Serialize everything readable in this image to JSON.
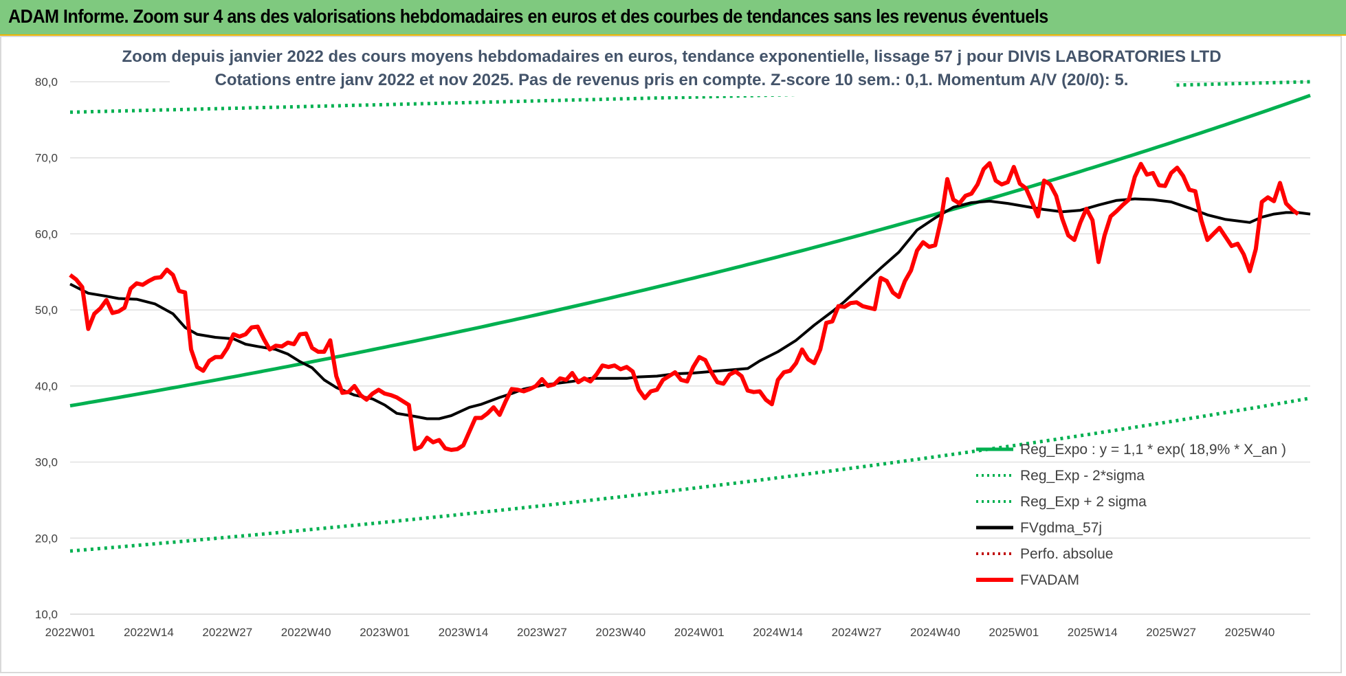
{
  "banner": {
    "title": "ADAM Informe. Zoom sur 4 ans des valorisations hebdomadaires en euros et des courbes de tendances sans les revenus éventuels"
  },
  "colors": {
    "banner_bg": "#7fc97f",
    "trend": "#00b050",
    "bands": "#00b050",
    "moving_average": "#000000",
    "price": "#ff0000",
    "perf": "#c00000"
  },
  "chart_data": {
    "type": "line",
    "title": "Zoom depuis janvier 2022 des cours moyens hebdomadaires en euros, tendance exponentielle, lissage 57 j pour DIVIS LABORATORIES LTD",
    "subtitle": "Cotations entre janv 2022 et nov 2025. Pas de revenus pris en compte. Z-score 10 sem.: 0,1. Momentum A/V (20/0): 5.",
    "xlabel": "",
    "ylabel": "",
    "x_tick_labels": [
      "2022W01",
      "2022W14",
      "2022W27",
      "2022W40",
      "2023W01",
      "2023W14",
      "2023W27",
      "2023W40",
      "2024W01",
      "2024W14",
      "2024W27",
      "2024W40",
      "2025W01",
      "2025W14",
      "2025W27",
      "2025W40"
    ],
    "y_tick_labels": [
      "10,0",
      "20,0",
      "30,0",
      "40,0",
      "50,0",
      "60,0",
      "70,0",
      "80,0"
    ],
    "ylim": [
      10,
      80
    ],
    "grid": "horizontal",
    "legend_position": "bottom-right",
    "series": [
      {
        "name": "Reg_Expo : y = 1,1 * exp( 18,9% *  X_an )",
        "style": "solid",
        "color": "#00b050",
        "start_value": 37.4,
        "end_value": 78.2,
        "growth_rate": 0.189
      },
      {
        "name": "Reg_Exp - 2*sigma",
        "style": "dotted",
        "color": "#00b050",
        "start_value": 18.3,
        "end_value": 38.4
      },
      {
        "name": "Reg_Exp + 2 sigma",
        "style": "dotted",
        "color": "#00b050",
        "start_value": 76.0,
        "end_value": 80.0,
        "clipped_at": 80.0
      },
      {
        "name": "FVgdma_57j",
        "style": "solid",
        "color": "#000000",
        "points": [
          [
            0,
            53.4
          ],
          [
            3,
            52.2
          ],
          [
            6,
            51.8
          ],
          [
            8,
            51.5
          ],
          [
            11,
            51.4
          ],
          [
            14,
            50.8
          ],
          [
            17,
            49.5
          ],
          [
            19,
            47.7
          ],
          [
            21,
            46.8
          ],
          [
            24,
            46.4
          ],
          [
            27,
            46.2
          ],
          [
            29,
            45.5
          ],
          [
            31,
            45.2
          ],
          [
            34,
            44.8
          ],
          [
            36,
            44.2
          ],
          [
            38,
            43.2
          ],
          [
            40,
            42.4
          ],
          [
            42,
            40.8
          ],
          [
            44,
            39.8
          ],
          [
            47,
            38.8
          ],
          [
            50,
            38.3
          ],
          [
            52,
            37.5
          ],
          [
            54,
            36.4
          ],
          [
            57,
            36.0
          ],
          [
            59,
            35.7
          ],
          [
            61,
            35.7
          ],
          [
            63,
            36.1
          ],
          [
            66,
            37.2
          ],
          [
            68,
            37.6
          ],
          [
            71,
            38.5
          ],
          [
            73,
            39.0
          ],
          [
            75,
            39.6
          ],
          [
            78,
            40.1
          ],
          [
            80,
            40.3
          ],
          [
            83,
            40.6
          ],
          [
            86,
            41.0
          ],
          [
            89,
            41.0
          ],
          [
            92,
            41.0
          ],
          [
            94,
            41.2
          ],
          [
            97,
            41.3
          ],
          [
            100,
            41.6
          ],
          [
            103,
            41.7
          ],
          [
            106,
            41.9
          ],
          [
            109,
            42.1
          ],
          [
            112,
            42.3
          ],
          [
            114,
            43.3
          ],
          [
            117,
            44.5
          ],
          [
            120,
            46.0
          ],
          [
            123,
            48.0
          ],
          [
            126,
            49.8
          ],
          [
            128,
            51.1
          ],
          [
            131,
            53.3
          ],
          [
            134,
            55.5
          ],
          [
            137,
            57.6
          ],
          [
            140,
            60.5
          ],
          [
            143,
            62.1
          ],
          [
            146,
            63.5
          ],
          [
            149,
            64.1
          ],
          [
            152,
            64.3
          ],
          [
            155,
            64.0
          ],
          [
            158,
            63.6
          ],
          [
            161,
            63.2
          ],
          [
            164,
            62.9
          ],
          [
            167,
            63.1
          ],
          [
            170,
            63.8
          ],
          [
            173,
            64.4
          ],
          [
            176,
            64.6
          ],
          [
            179,
            64.5
          ],
          [
            182,
            64.2
          ],
          [
            185,
            63.4
          ],
          [
            188,
            62.5
          ],
          [
            191,
            61.9
          ],
          [
            194,
            61.6
          ],
          [
            195,
            61.5
          ],
          [
            197,
            62.2
          ],
          [
            199,
            62.6
          ],
          [
            201,
            62.8
          ],
          [
            203,
            62.8
          ],
          [
            205,
            62.6
          ]
        ]
      },
      {
        "name": "Perfo. absolue",
        "style": "dotted",
        "color": "#c00000",
        "points": []
      },
      {
        "name": "FVADAM",
        "style": "solid",
        "color": "#ff0000",
        "points": [
          [
            0,
            54.6
          ],
          [
            1,
            54.0
          ],
          [
            2,
            53.0
          ],
          [
            3,
            47.5
          ],
          [
            4,
            49.5
          ],
          [
            5,
            50.2
          ],
          [
            6,
            51.3
          ],
          [
            7,
            49.6
          ],
          [
            8,
            49.8
          ],
          [
            9,
            50.3
          ],
          [
            10,
            52.8
          ],
          [
            11,
            53.5
          ],
          [
            12,
            53.3
          ],
          [
            13,
            53.8
          ],
          [
            14,
            54.2
          ],
          [
            15,
            54.3
          ],
          [
            16,
            55.3
          ],
          [
            17,
            54.6
          ],
          [
            18,
            52.5
          ],
          [
            19,
            52.3
          ],
          [
            20,
            44.8
          ],
          [
            21,
            42.5
          ],
          [
            22,
            42.0
          ],
          [
            23,
            43.3
          ],
          [
            24,
            43.8
          ],
          [
            25,
            43.8
          ],
          [
            26,
            45.0
          ],
          [
            27,
            46.8
          ],
          [
            28,
            46.5
          ],
          [
            29,
            46.8
          ],
          [
            30,
            47.7
          ],
          [
            31,
            47.8
          ],
          [
            32,
            46.2
          ],
          [
            33,
            44.8
          ],
          [
            34,
            45.3
          ],
          [
            35,
            45.2
          ],
          [
            36,
            45.7
          ],
          [
            37,
            45.5
          ],
          [
            38,
            46.8
          ],
          [
            39,
            46.9
          ],
          [
            40,
            45.0
          ],
          [
            41,
            44.5
          ],
          [
            42,
            44.5
          ],
          [
            43,
            46.0
          ],
          [
            44,
            41.3
          ],
          [
            45,
            39.1
          ],
          [
            46,
            39.2
          ],
          [
            47,
            40.0
          ],
          [
            48,
            38.8
          ],
          [
            49,
            38.2
          ],
          [
            50,
            39.0
          ],
          [
            51,
            39.5
          ],
          [
            52,
            39.0
          ],
          [
            53,
            38.8
          ],
          [
            54,
            38.5
          ],
          [
            55,
            38.0
          ],
          [
            56,
            37.5
          ],
          [
            57,
            31.7
          ],
          [
            58,
            32.0
          ],
          [
            59,
            33.2
          ],
          [
            60,
            32.6
          ],
          [
            61,
            32.9
          ],
          [
            62,
            31.8
          ],
          [
            63,
            31.6
          ],
          [
            64,
            31.7
          ],
          [
            65,
            32.2
          ],
          [
            66,
            34.0
          ],
          [
            67,
            35.8
          ],
          [
            68,
            35.8
          ],
          [
            69,
            36.4
          ],
          [
            70,
            37.2
          ],
          [
            71,
            36.2
          ],
          [
            72,
            38.0
          ],
          [
            73,
            39.6
          ],
          [
            74,
            39.5
          ],
          [
            75,
            39.3
          ],
          [
            76,
            39.6
          ],
          [
            77,
            40.0
          ],
          [
            78,
            40.9
          ],
          [
            79,
            40.0
          ],
          [
            80,
            40.2
          ],
          [
            81,
            41.0
          ],
          [
            82,
            40.8
          ],
          [
            83,
            41.7
          ],
          [
            84,
            40.5
          ],
          [
            85,
            41.0
          ],
          [
            86,
            40.6
          ],
          [
            87,
            41.5
          ],
          [
            88,
            42.7
          ],
          [
            89,
            42.5
          ],
          [
            90,
            42.7
          ],
          [
            91,
            42.2
          ],
          [
            92,
            42.5
          ],
          [
            93,
            41.9
          ],
          [
            94,
            39.5
          ],
          [
            95,
            38.4
          ],
          [
            96,
            39.3
          ],
          [
            97,
            39.5
          ],
          [
            98,
            40.8
          ],
          [
            99,
            41.3
          ],
          [
            100,
            41.8
          ],
          [
            101,
            40.8
          ],
          [
            102,
            40.6
          ],
          [
            103,
            42.5
          ],
          [
            104,
            43.8
          ],
          [
            105,
            43.4
          ],
          [
            106,
            41.8
          ],
          [
            107,
            40.5
          ],
          [
            108,
            40.3
          ],
          [
            109,
            41.5
          ],
          [
            110,
            41.9
          ],
          [
            111,
            41.3
          ],
          [
            112,
            39.4
          ],
          [
            113,
            39.2
          ],
          [
            114,
            39.3
          ],
          [
            115,
            38.2
          ],
          [
            116,
            37.6
          ],
          [
            117,
            40.8
          ],
          [
            118,
            41.8
          ],
          [
            119,
            42.0
          ],
          [
            120,
            43.0
          ],
          [
            121,
            44.8
          ],
          [
            122,
            43.5
          ],
          [
            123,
            43.0
          ],
          [
            124,
            44.8
          ],
          [
            125,
            48.3
          ],
          [
            126,
            48.5
          ],
          [
            127,
            50.5
          ],
          [
            128,
            50.4
          ],
          [
            129,
            50.9
          ],
          [
            130,
            51.0
          ],
          [
            131,
            50.5
          ],
          [
            132,
            50.3
          ],
          [
            133,
            50.1
          ],
          [
            134,
            54.2
          ],
          [
            135,
            53.8
          ],
          [
            136,
            52.3
          ],
          [
            137,
            51.7
          ],
          [
            138,
            53.8
          ],
          [
            139,
            55.2
          ],
          [
            140,
            57.8
          ],
          [
            141,
            58.9
          ],
          [
            142,
            58.3
          ],
          [
            143,
            58.5
          ],
          [
            144,
            62.0
          ],
          [
            145,
            67.2
          ],
          [
            146,
            64.5
          ],
          [
            147,
            64.0
          ],
          [
            148,
            65.0
          ],
          [
            149,
            65.3
          ],
          [
            150,
            66.5
          ],
          [
            151,
            68.5
          ],
          [
            152,
            69.3
          ],
          [
            153,
            67.0
          ],
          [
            154,
            66.5
          ],
          [
            155,
            66.8
          ],
          [
            156,
            68.8
          ],
          [
            157,
            66.6
          ],
          [
            158,
            66.0
          ],
          [
            159,
            64.2
          ],
          [
            160,
            62.3
          ],
          [
            161,
            67.0
          ],
          [
            162,
            66.5
          ],
          [
            163,
            65.0
          ],
          [
            164,
            62.0
          ],
          [
            165,
            59.8
          ],
          [
            166,
            59.2
          ],
          [
            167,
            61.5
          ],
          [
            168,
            63.3
          ],
          [
            169,
            61.8
          ],
          [
            170,
            56.3
          ],
          [
            171,
            59.8
          ],
          [
            172,
            62.3
          ],
          [
            173,
            63.0
          ],
          [
            174,
            63.8
          ],
          [
            175,
            64.5
          ],
          [
            176,
            67.5
          ],
          [
            177,
            69.2
          ],
          [
            178,
            67.8
          ],
          [
            179,
            68.0
          ],
          [
            180,
            66.4
          ],
          [
            181,
            66.3
          ],
          [
            182,
            68.0
          ],
          [
            183,
            68.7
          ],
          [
            184,
            67.6
          ],
          [
            185,
            65.8
          ],
          [
            186,
            65.6
          ],
          [
            187,
            61.8
          ],
          [
            188,
            59.2
          ],
          [
            189,
            60.0
          ],
          [
            190,
            60.8
          ],
          [
            191,
            59.6
          ],
          [
            192,
            58.4
          ],
          [
            193,
            58.7
          ],
          [
            194,
            57.3
          ],
          [
            195,
            55.1
          ],
          [
            196,
            58.0
          ],
          [
            197,
            64.2
          ],
          [
            198,
            64.8
          ],
          [
            199,
            64.3
          ],
          [
            200,
            66.7
          ],
          [
            201,
            64.0
          ],
          [
            202,
            63.2
          ],
          [
            203,
            62.6
          ]
        ]
      }
    ]
  }
}
